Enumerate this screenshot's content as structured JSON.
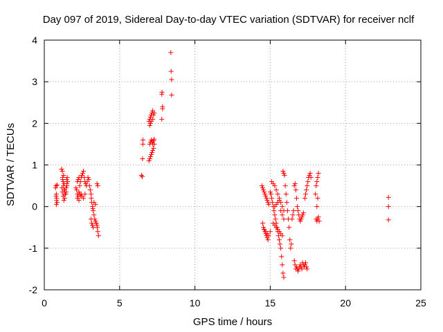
{
  "chart_data": {
    "type": "scatter",
    "title": "Day 097 of 2019, Sidereal Day-to-day VTEC variation (SDTVAR) for receiver nclf",
    "xlabel": "GPS time / hours",
    "ylabel": "SDTVAR / TECUs",
    "xlim": [
      0,
      25
    ],
    "ylim": [
      -2,
      4
    ],
    "xticks": [
      0,
      5,
      10,
      15,
      20,
      25
    ],
    "yticks": [
      -2,
      -1,
      0,
      1,
      2,
      3,
      4
    ],
    "grid": true,
    "marker": "+",
    "color": "#ff0000",
    "series": [
      {
        "name": "SDTVAR",
        "x": [
          0.75,
          0.78,
          0.8,
          0.82,
          0.85,
          0.8,
          0.78,
          0.82,
          0.85,
          1.15,
          1.2,
          1.22,
          1.25,
          1.28,
          1.3,
          1.32,
          1.35,
          1.3,
          1.25,
          1.2,
          1.18,
          1.22,
          1.28,
          1.32,
          1.36,
          1.4,
          1.45,
          1.5,
          1.55,
          1.5,
          1.45,
          1.42,
          1.48,
          1.52,
          2.1,
          2.15,
          2.2,
          2.25,
          2.2,
          2.3,
          2.35,
          2.4,
          2.45,
          2.5,
          2.55,
          2.6,
          2.65,
          2.7,
          2.75,
          2.8,
          2.85,
          2.9,
          2.95,
          2.3,
          2.35,
          2.4,
          2.45,
          2.5,
          2.6,
          2.7,
          2.2,
          2.25,
          2.3,
          3.0,
          3.05,
          3.1,
          3.12,
          3.15,
          3.2,
          3.22,
          3.25,
          3.3,
          3.35,
          3.4,
          3.45,
          3.5,
          3.52,
          3.55,
          3.6,
          3.1,
          3.15,
          3.2,
          3.25,
          3.3,
          3.4,
          3.5,
          3.55,
          3.45,
          6.45,
          6.5,
          6.52,
          6.55,
          6.55,
          6.95,
          7.0,
          7.05,
          7.1,
          7.15,
          7.2,
          7.25,
          7.3,
          7.0,
          7.05,
          7.1,
          7.15,
          7.2,
          7.25,
          7.3,
          6.95,
          7.0,
          7.05,
          7.1,
          7.15,
          7.2,
          7.25,
          7.3,
          7.0,
          7.05,
          7.1,
          7.2,
          7.8,
          7.82,
          7.85,
          7.8,
          7.85,
          8.4,
          8.42,
          8.45,
          8.45,
          14.45,
          14.5,
          14.55,
          14.6,
          14.65,
          14.7,
          14.75,
          14.8,
          14.85,
          14.9,
          14.5,
          14.55,
          14.6,
          14.65,
          14.7,
          14.75,
          14.8,
          14.85,
          14.6,
          14.7,
          14.8,
          14.9,
          15.0,
          15.0,
          15.05,
          15.1,
          15.15,
          15.2,
          15.25,
          15.3,
          15.35,
          15.4,
          15.45,
          15.5,
          15.55,
          15.6,
          15.65,
          15.7,
          15.75,
          15.8,
          15.85,
          15.9,
          15.1,
          15.2,
          15.3,
          15.4,
          15.5,
          15.6,
          15.7,
          15.8,
          15.9,
          15.2,
          15.3,
          15.4,
          15.5,
          15.6,
          15.7,
          15.8,
          15.3,
          15.4,
          15.5,
          15.6,
          15.7,
          15.8,
          15.9,
          15.85,
          15.9,
          15.95,
          16.0,
          16.05,
          16.1,
          16.15,
          16.2,
          16.25,
          16.3,
          16.35,
          16.4,
          16.45,
          16.5,
          16.55,
          16.6,
          16.65,
          16.7,
          16.75,
          16.8,
          16.85,
          16.9,
          16.95,
          17.0,
          17.05,
          17.1,
          17.15,
          17.2,
          16.6,
          16.65,
          16.7,
          16.75,
          16.8,
          16.85,
          16.9,
          16.95,
          17.0,
          17.05,
          17.1,
          17.15,
          17.2,
          17.25,
          17.3,
          17.35,
          17.4,
          17.45,
          17.3,
          17.35,
          17.4,
          17.45,
          17.5,
          17.55,
          17.6,
          17.65,
          17.7,
          18.0,
          18.05,
          18.1,
          18.15,
          18.2,
          18.15,
          18.1,
          18.05,
          18.1,
          18.15,
          18.2,
          18.25,
          22.85,
          22.85,
          22.85
        ],
        "y": [
          0.45,
          0.5,
          0.3,
          0.2,
          0.1,
          0.05,
          0.25,
          0.15,
          0.52,
          0.9,
          0.85,
          0.7,
          0.6,
          0.5,
          0.4,
          0.3,
          0.2,
          0.15,
          0.25,
          0.35,
          0.45,
          0.65,
          0.75,
          0.55,
          0.4,
          0.3,
          0.35,
          0.55,
          0.6,
          0.5,
          0.45,
          0.3,
          0.65,
          0.7,
          0.45,
          0.4,
          0.3,
          0.25,
          0.2,
          0.15,
          0.5,
          0.6,
          0.7,
          0.75,
          0.8,
          0.85,
          0.7,
          0.6,
          0.55,
          0.5,
          0.6,
          0.7,
          0.65,
          0.35,
          0.3,
          0.25,
          0.3,
          0.25,
          0.2,
          0.3,
          0.6,
          0.65,
          0.7,
          0.5,
          0.4,
          0.3,
          0.2,
          0.1,
          0.0,
          -0.05,
          -0.1,
          -0.2,
          -0.3,
          -0.35,
          -0.4,
          -0.45,
          -0.5,
          -0.6,
          -0.7,
          -0.3,
          -0.4,
          -0.45,
          -0.5,
          0.1,
          0.05,
          0.55,
          0.5,
          -0.4,
          0.75,
          0.72,
          1.15,
          1.6,
          1.5,
          1.1,
          1.15,
          1.2,
          1.25,
          1.3,
          1.35,
          1.4,
          1.5,
          1.5,
          1.55,
          1.6,
          1.55,
          1.5,
          1.58,
          1.62,
          2.05,
          2.1,
          2.15,
          2.2,
          2.25,
          2.3,
          2.2,
          2.25,
          1.95,
          2.0,
          2.05,
          2.1,
          2.7,
          2.75,
          2.4,
          2.1,
          2.35,
          3.7,
          3.25,
          3.05,
          2.68,
          0.5,
          0.45,
          0.4,
          0.35,
          0.3,
          0.25,
          0.2,
          0.15,
          0.1,
          0.05,
          -0.4,
          -0.5,
          -0.55,
          -0.6,
          -0.65,
          -0.7,
          -0.75,
          -0.8,
          -0.55,
          -0.6,
          -0.65,
          -0.7,
          -0.6,
          0.35,
          0.3,
          0.2,
          0.1,
          0.0,
          -0.1,
          -0.2,
          -0.3,
          -0.4,
          -0.5,
          -0.6,
          -0.7,
          -0.8,
          -0.9,
          -1.0,
          -1.2,
          -1.4,
          -1.6,
          -1.7,
          0.6,
          0.55,
          0.5,
          0.4,
          0.3,
          0.2,
          0.1,
          0.0,
          -0.1,
          -0.4,
          -0.45,
          -0.5,
          -0.55,
          -0.6,
          -0.65,
          -0.7,
          0.0,
          0.05,
          0.1,
          0.15,
          -0.1,
          -0.2,
          -0.3,
          0.85,
          0.8,
          0.75,
          0.5,
          0.3,
          0.1,
          -0.1,
          -0.3,
          -0.5,
          -0.8,
          -1.0,
          -0.9,
          -0.3,
          -0.2,
          -0.1,
          0.5,
          0.55,
          0.4,
          0.2,
          0.0,
          -0.1,
          -0.2,
          -0.3,
          -0.35,
          -0.3,
          -0.25,
          -0.2,
          -0.15,
          -1.3,
          -1.4,
          -1.5,
          -1.45,
          -1.5,
          -1.55,
          -1.5,
          -1.45,
          -1.4,
          -1.45,
          -1.5,
          -1.35,
          -1.4,
          -1.45,
          -1.4,
          -1.35,
          -1.45,
          -1.5,
          0.2,
          0.3,
          0.4,
          0.5,
          0.6,
          0.7,
          0.75,
          0.8,
          0.7,
          0.3,
          0.5,
          0.6,
          0.7,
          0.8,
          0.2,
          0.0,
          -0.3,
          -0.35,
          -0.3,
          -0.25,
          -0.35,
          0.22,
          0.0,
          -0.32
        ]
      }
    ]
  }
}
